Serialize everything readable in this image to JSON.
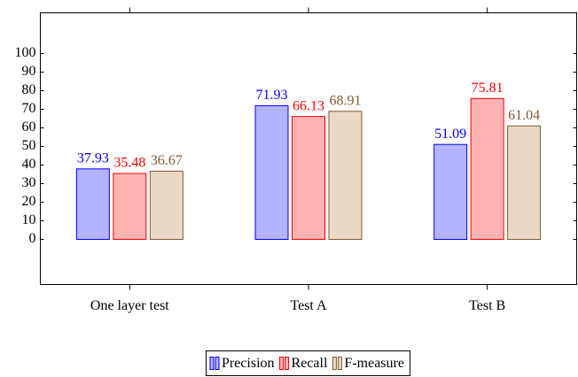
{
  "chart_data": {
    "type": "bar",
    "categories": [
      "One layer test",
      "Test A",
      "Test B"
    ],
    "series": [
      {
        "name": "Precision",
        "color": "#0000ff",
        "fill": "#b3b3ff",
        "values": [
          37.93,
          71.93,
          51.09
        ]
      },
      {
        "name": "Recall",
        "color": "#ff0000",
        "fill": "#ffb3b3",
        "values": [
          35.48,
          66.13,
          75.81
        ]
      },
      {
        "name": "F-measure",
        "color": "#7f5a33",
        "fill": "#ead9c5",
        "values": [
          36.67,
          68.91,
          61.04
        ]
      }
    ],
    "ylim": [
      -24.3,
      121.9
    ],
    "yticks": [
      0,
      10,
      20,
      30,
      40,
      50,
      60,
      70,
      80,
      90,
      100
    ],
    "legend": "below"
  }
}
